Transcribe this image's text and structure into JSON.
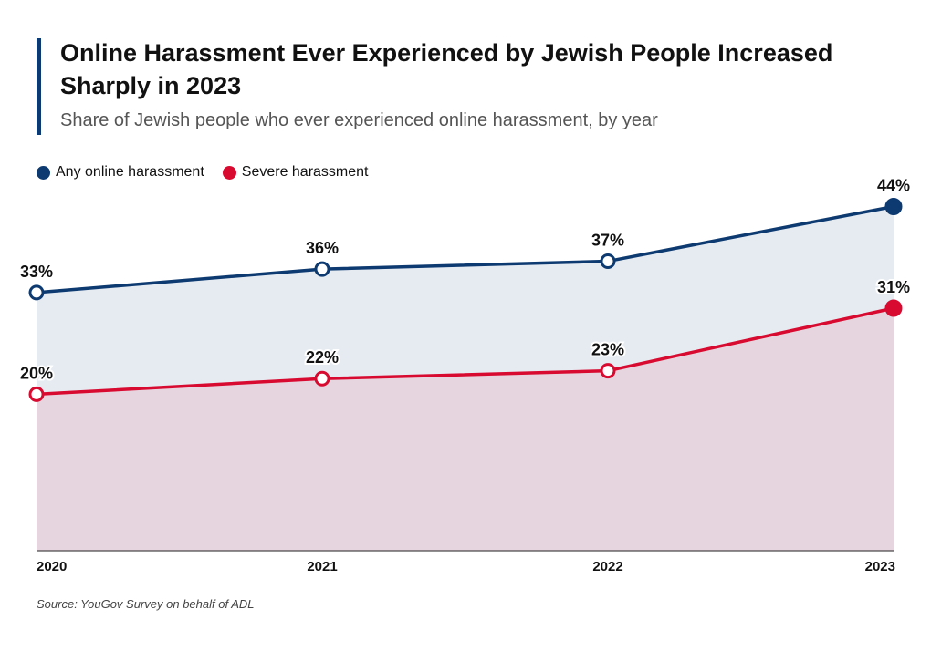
{
  "chart_data": {
    "type": "area",
    "title": "Online Harassment Ever Experienced by Jewish People Increased Sharply in 2023",
    "subtitle": "Share of Jewish people who ever experienced online harassment, by year",
    "categories": [
      "2020",
      "2021",
      "2022",
      "2023"
    ],
    "series": [
      {
        "name": "Any online harassment",
        "values": [
          33,
          36,
          37,
          44
        ],
        "color": "#0d3a70",
        "fill": "#e6ebf2"
      },
      {
        "name": "Severe harassment",
        "values": [
          20,
          22,
          23,
          31
        ],
        "color": "#d80a30",
        "fill": "#e6d5de"
      }
    ],
    "value_suffix": "%",
    "ylim": [
      0,
      44
    ],
    "grid": false,
    "legend": "top-left",
    "source": "Source: YouGov Survey on behalf of ADL"
  }
}
